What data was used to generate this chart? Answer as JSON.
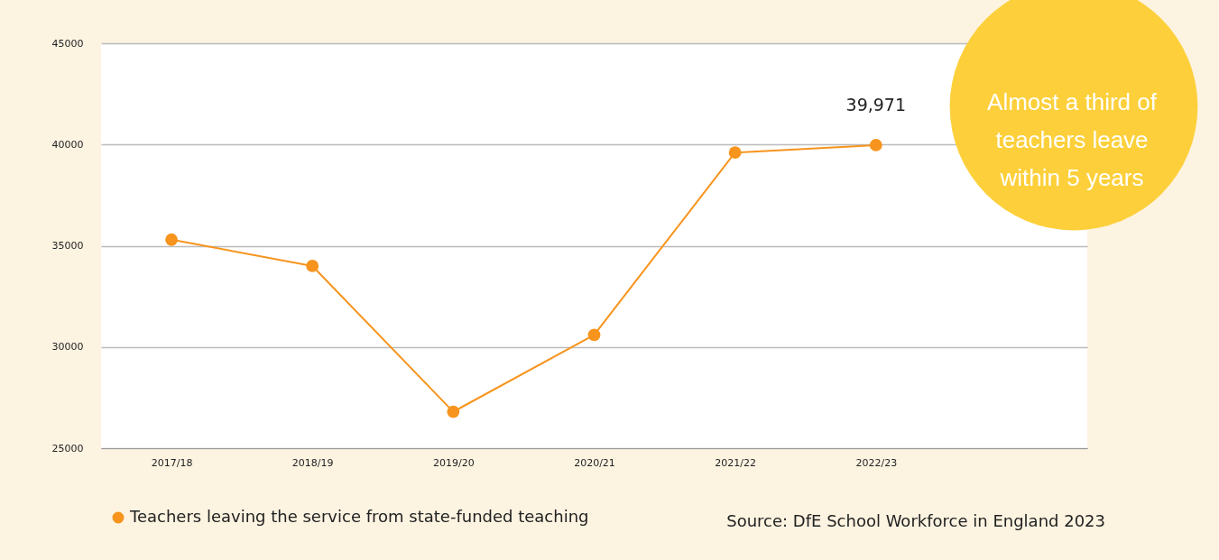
{
  "chart_data": {
    "type": "line",
    "categories": [
      "2017/18",
      "2018/19",
      "2019/20",
      "2020/21",
      "2021/22",
      "2022/23",
      null
    ],
    "series": [
      {
        "name": "Teachers leaving the service from state-funded teaching",
        "color": "#f7941d",
        "values": [
          35300,
          34000,
          26800,
          30600,
          39600,
          39971,
          null
        ],
        "value_labels": [
          null,
          null,
          null,
          null,
          null,
          "39,971",
          null
        ]
      }
    ],
    "ylim": [
      25000,
      45000
    ],
    "yticks": [
      25000,
      30000,
      35000,
      40000,
      45000
    ],
    "grid": "y",
    "legend": "bottom",
    "marker": "circle",
    "line_style": "solid",
    "annotations": [
      "Source: DfE School Workforce in England 2023",
      "Almost a third of\nteachers leave\nwithin 5 years"
    ]
  }
}
